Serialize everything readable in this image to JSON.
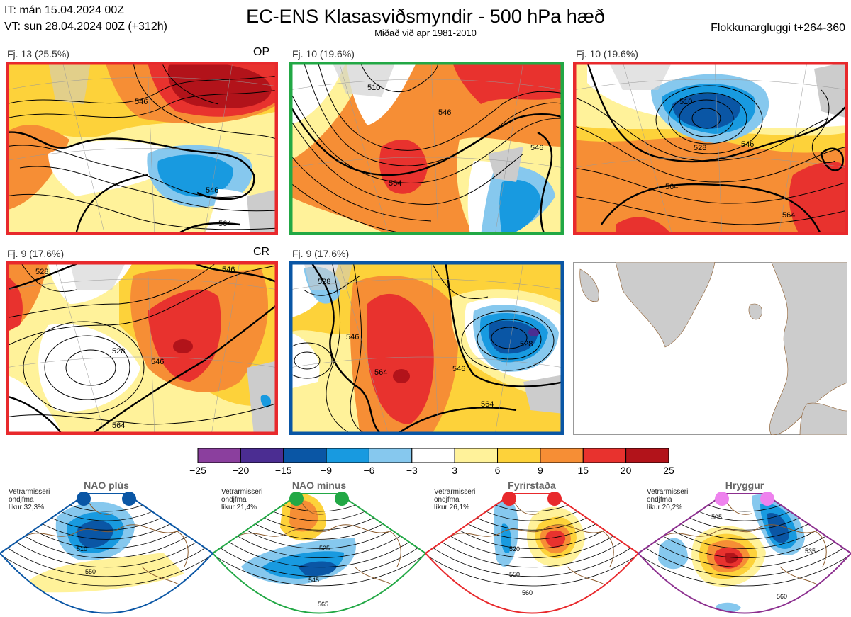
{
  "header": {
    "it_line": "IT: mán 15.04.2024 00Z",
    "vt_line": "VT: sun 28.04.2024 00Z  (+312h)",
    "title": "EC-ENS Klasasviðsmyndir - 500 hPa hæð",
    "subtitle": "Miðað við apr 1981-2010",
    "window": "Flokkunargluggi t+264-360"
  },
  "panels": [
    {
      "title": "Fj. 13 (25.5%)",
      "label": "OP",
      "frame_color": "#e8292c",
      "contours": [
        "546",
        "546",
        "564"
      ]
    },
    {
      "title": "Fj. 10 (19.6%)",
      "label": "",
      "frame_color": "#22a845",
      "contours": [
        "510",
        "546",
        "564",
        "546"
      ]
    },
    {
      "title": "Fj. 10 (19.6%)",
      "label": "",
      "frame_color": "#e8292c",
      "contours": [
        "510",
        "528",
        "546",
        "564",
        "564"
      ]
    },
    {
      "title": "Fj. 9 (17.6%)",
      "label": "CR",
      "frame_color": "#e8292c",
      "contours": [
        "528",
        "546",
        "528",
        "546",
        "564"
      ]
    },
    {
      "title": "Fj. 9 (17.6%)",
      "label": "",
      "frame_color": "#0a56a5",
      "contours": [
        "528",
        "546",
        "564",
        "546",
        "564",
        "528"
      ]
    }
  ],
  "chart_data": {
    "type": "heatmap",
    "title": "EC-ENS Klasasviðsmyndir - 500 hPa hæð",
    "colorbar": {
      "ticks": [
        "−25",
        "−20",
        "−15",
        "−9",
        "−6",
        "−3",
        "3",
        "6",
        "9",
        "15",
        "20",
        "25"
      ],
      "colors": [
        "#8b3f9e",
        "#4b2d92",
        "#0a56a5",
        "#189ae0",
        "#86c8ee",
        "#ffffff",
        "#fff29a",
        "#fdd23a",
        "#f68e35",
        "#e8322e",
        "#b2131a"
      ]
    }
  },
  "regimes": [
    {
      "name": "NAO plús",
      "text": [
        "Vetrarmisseri",
        "ondjfma",
        "líkur 32,3%"
      ],
      "color": "#0a56a5",
      "dot_color": "#0a56a5",
      "labels": [
        "510",
        "550"
      ]
    },
    {
      "name": "NAO mínus",
      "text": [
        "Vetrarmisseri",
        "ondjfma",
        "líkur 21,4%"
      ],
      "color": "#22a845",
      "dot_color": "#22a845",
      "labels": [
        "525",
        "545",
        "565"
      ]
    },
    {
      "name": "Fyrirstaða",
      "text": [
        "Vetrarmisseri",
        "ondjfma",
        "líkur 26,1%"
      ],
      "color": "#e8292c",
      "dot_color": "#e8292c",
      "labels": [
        "520",
        "550",
        "560"
      ]
    },
    {
      "name": "Hryggur",
      "text": [
        "Vetrarmisseri",
        "ondjfma",
        "líkur 20,2%"
      ],
      "color": "#8c2f8f",
      "dot_color": "#ee82ee",
      "labels": [
        "505",
        "535",
        "560"
      ]
    }
  ]
}
